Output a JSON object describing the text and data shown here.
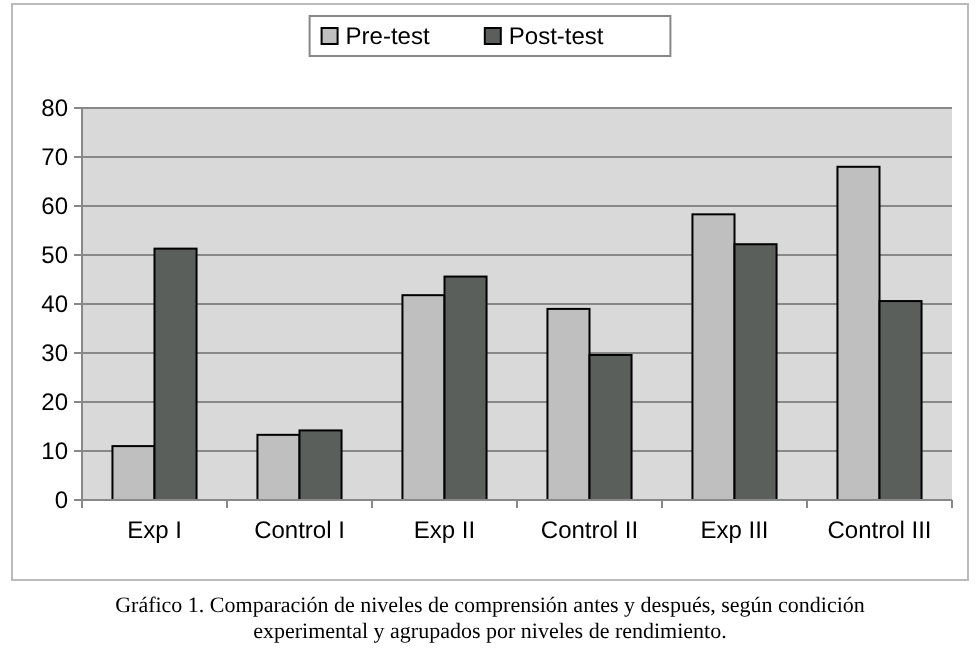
{
  "chart_data": {
    "type": "bar",
    "categories": [
      "Exp I",
      "Control I",
      "Exp II",
      "Control II",
      "Exp III",
      "Control III"
    ],
    "series": [
      {
        "name": "Pre-test",
        "color": "#c0bfc0",
        "values": [
          11,
          13.3,
          41.8,
          39,
          58.3,
          68
        ]
      },
      {
        "name": "Post-test",
        "color": "#5a5f5c",
        "values": [
          51.3,
          14.2,
          45.6,
          29.6,
          52.2,
          40.6
        ]
      }
    ],
    "ylim": [
      0,
      80
    ],
    "yticks": [
      0,
      10,
      20,
      30,
      40,
      50,
      60,
      70,
      80
    ],
    "grid": "y",
    "legend": "top",
    "annotations": [
      "Gráfico 1. Comparación de niveles de comprensión antes y después, según condición experimental y agrupados por niveles de rendimiento."
    ]
  }
}
